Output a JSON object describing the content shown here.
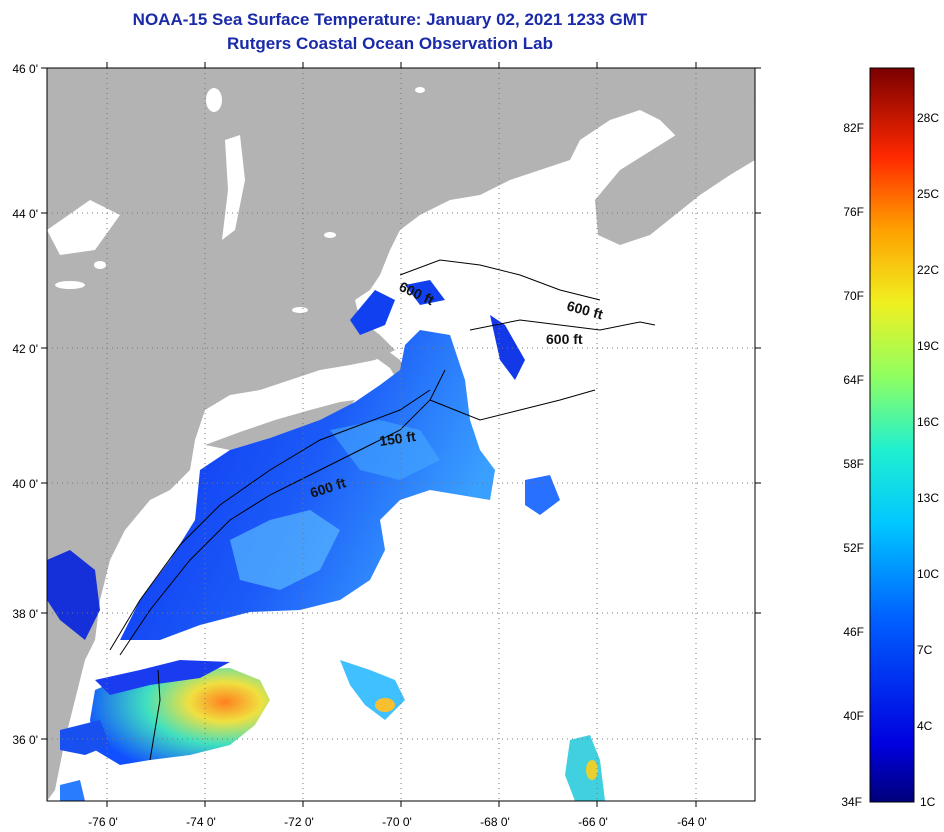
{
  "header": {
    "title": "NOAA-15 Sea Surface Temperature:  January 02, 2021 1233 GMT",
    "subtitle": "Rutgers Coastal Ocean Observation Lab"
  },
  "map": {
    "lat_labels": [
      "46 0'",
      "44 0'",
      "42 0'",
      "40 0'",
      "38 0'",
      "36 0'"
    ],
    "lon_labels": [
      "-76 0'",
      "-74 0'",
      "-72 0'",
      "-70 0'",
      "-68 0'",
      "-66 0'",
      "-64 0'"
    ],
    "contours": [
      "600 ft",
      "600 ft",
      "600 ft",
      "150 ft",
      "600 ft"
    ],
    "land_color": "#b3b3b3",
    "cloud_color": "#ffffff"
  },
  "colorbar": {
    "f_labels": [
      "82F",
      "76F",
      "70F",
      "64F",
      "58F",
      "52F",
      "46F",
      "40F",
      "34F"
    ],
    "c_labels": [
      "28C",
      "25C",
      "22C",
      "19C",
      "16C",
      "13C",
      "10C",
      "7C",
      "4C",
      "1C"
    ],
    "stops": [
      "#00007a",
      "#0000ff",
      "#0070ff",
      "#00d8ff",
      "#30ffc0",
      "#c0ff30",
      "#ffd000",
      "#ff5000",
      "#d00000",
      "#7a0000"
    ]
  }
}
